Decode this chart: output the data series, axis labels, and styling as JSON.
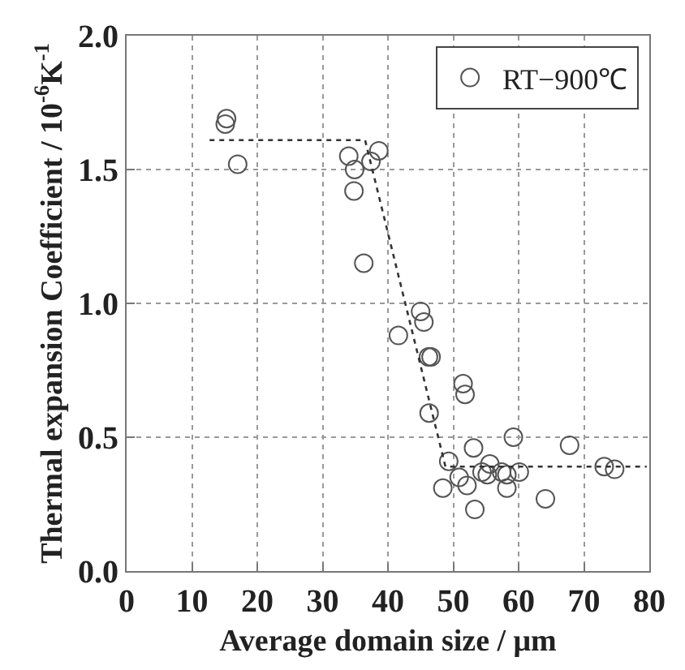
{
  "chart_data": {
    "type": "scatter",
    "xlabel": "Average domain size / μm",
    "ylabel": "Thermal expansion Coefficient / 10$^{-6}$K$^{-1}$",
    "xlim": [
      0,
      80
    ],
    "xticks": [
      0,
      10,
      20,
      30,
      40,
      50,
      60,
      70,
      80
    ],
    "ylim": [
      0,
      2
    ],
    "yticks": [
      {
        "value": 0,
        "label": "0.0"
      },
      {
        "value": 0.5,
        "label": "0.5"
      },
      {
        "value": 1,
        "label": "1.0"
      },
      {
        "value": 1.5,
        "label": "1.5"
      },
      {
        "value": 2,
        "label": "2.0"
      }
    ],
    "grid": true,
    "legend": "top right",
    "marker": "circle",
    "series": [
      {
        "name": "RT−900℃",
        "color": "#555555",
        "x": [
          15.1,
          15.3,
          17.0,
          34.0,
          34.9,
          34.8,
          36.3,
          37.4,
          38.6,
          41.6,
          45.0,
          45.5,
          46.2,
          46.6,
          46.3,
          49.3,
          48.4,
          50.9,
          51.5,
          51.8,
          52.1,
          53.1,
          53.3,
          54.4,
          55.2,
          55.6,
          57.4,
          58.2,
          58.2,
          59.2,
          60.1,
          64.1,
          67.8,
          73.1,
          74.7
        ],
        "values": [
          1.67,
          1.69,
          1.52,
          1.55,
          1.5,
          1.42,
          1.15,
          1.53,
          1.57,
          0.88,
          0.97,
          0.93,
          0.8,
          0.8,
          0.59,
          0.41,
          0.31,
          0.35,
          0.7,
          0.66,
          0.32,
          0.46,
          0.23,
          0.37,
          0.36,
          0.4,
          0.37,
          0.36,
          0.31,
          0.5,
          0.37,
          0.27,
          0.47,
          0.39,
          0.38
        ]
      },
      {
        "type": "line",
        "color": "#333333",
        "line_style": "dotted",
        "marker": "none",
        "x": [
          12.7,
          36.5,
          48.8,
          79.6
        ],
        "values": [
          1.61,
          1.61,
          0.39,
          0.39
        ]
      }
    ]
  }
}
